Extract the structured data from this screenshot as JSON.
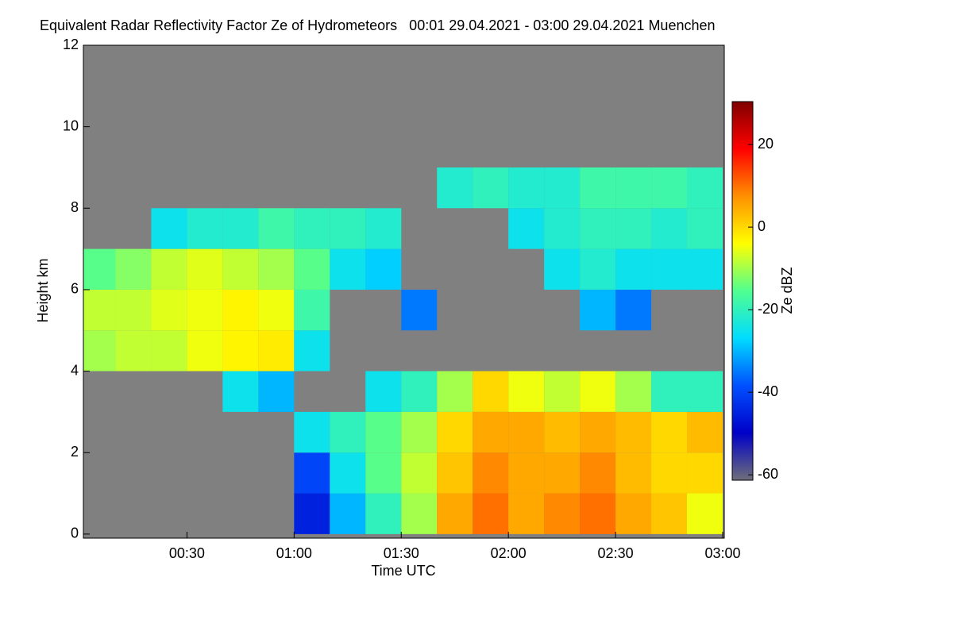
{
  "chart_data": {
    "type": "heatmap",
    "title": "Equivalent Radar Reflectivity Factor Ze of Hydrometeors   00:01 29.04.2021 - 03:00 29.04.2021 Muenchen",
    "x_label": "Time UTC",
    "y_label": "Height km",
    "colorbar_label": "Ze dBZ",
    "x": [
      5,
      15,
      25,
      35,
      45,
      55,
      65,
      75,
      85,
      95,
      105,
      115,
      125,
      135,
      145,
      155,
      165,
      175
    ],
    "y": [
      0.5,
      1.5,
      2.5,
      3.5,
      4.5,
      5.5,
      6.5,
      7.5,
      8.5,
      9.5,
      10.5,
      11.5
    ],
    "z": [
      [
        null,
        null,
        null,
        null,
        null,
        null,
        -45,
        -30,
        -20,
        -10,
        5,
        10,
        5,
        8,
        10,
        5,
        2,
        -5
      ],
      [
        null,
        null,
        null,
        null,
        null,
        null,
        -40,
        -25,
        -15,
        -8,
        2,
        8,
        5,
        5,
        8,
        3,
        0,
        0
      ],
      [
        null,
        null,
        null,
        null,
        null,
        null,
        -25,
        -20,
        -15,
        -10,
        0,
        5,
        5,
        3,
        5,
        3,
        0,
        3
      ],
      [
        null,
        null,
        null,
        null,
        -25,
        -30,
        null,
        null,
        -25,
        -20,
        -10,
        0,
        -5,
        -8,
        -5,
        -10,
        -20,
        -20
      ],
      [
        -10,
        -8,
        -8,
        -5,
        -3,
        -2,
        -25,
        null,
        null,
        null,
        null,
        null,
        null,
        null,
        null,
        null,
        null,
        null
      ],
      [
        -8,
        -8,
        -6,
        -5,
        -3,
        -5,
        -18,
        null,
        null,
        -35,
        null,
        null,
        null,
        null,
        -30,
        -35,
        null,
        null
      ],
      [
        -15,
        -12,
        -8,
        -6,
        -8,
        -10,
        -15,
        -25,
        -28,
        null,
        null,
        null,
        null,
        -25,
        -22,
        -25,
        -25,
        -25
      ],
      [
        null,
        null,
        -25,
        -22,
        -22,
        -18,
        -20,
        -20,
        -22,
        null,
        null,
        null,
        -25,
        -22,
        -20,
        -20,
        -22,
        -20
      ],
      [
        null,
        null,
        null,
        null,
        null,
        null,
        null,
        null,
        null,
        null,
        -22,
        -20,
        -22,
        -22,
        -18,
        -18,
        -18,
        -20
      ],
      [
        null,
        null,
        null,
        null,
        null,
        null,
        null,
        null,
        null,
        null,
        null,
        null,
        null,
        null,
        null,
        null,
        null,
        null
      ],
      [
        null,
        null,
        null,
        null,
        null,
        null,
        null,
        null,
        null,
        null,
        null,
        null,
        null,
        null,
        null,
        null,
        null,
        null
      ],
      [
        null,
        null,
        null,
        null,
        null,
        null,
        null,
        null,
        null,
        null,
        null,
        null,
        null,
        null,
        null,
        null,
        null,
        null
      ]
    ],
    "xlim": [
      1,
      180
    ],
    "xticks": [
      {
        "value": 30,
        "label": "00:30"
      },
      {
        "value": 60,
        "label": "01:00"
      },
      {
        "value": 90,
        "label": "01:30"
      },
      {
        "value": 120,
        "label": "02:00"
      },
      {
        "value": 150,
        "label": "02:30"
      },
      {
        "value": 180,
        "label": "03:00"
      }
    ],
    "ylim": [
      -0.1,
      12
    ],
    "yticks": [
      0,
      2,
      4,
      6,
      8,
      10,
      12
    ],
    "zlim": [
      -61.3,
      30.4
    ],
    "zticks": [
      20,
      0,
      -20,
      -40,
      -60
    ],
    "colormap": [
      "#6e6e7a",
      "#0000c8",
      "#0050ff",
      "#00dcff",
      "#50ff90",
      "#ffff00",
      "#ff9000",
      "#ff0000",
      "#800000"
    ],
    "background": "#808080"
  }
}
